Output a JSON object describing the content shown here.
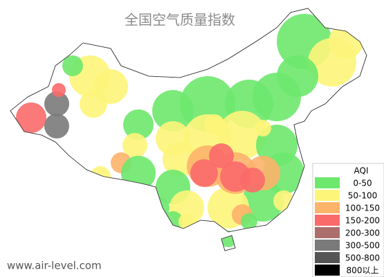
{
  "title": "全国空气质量指数",
  "watermark": "www.air-level.com",
  "legend": {
    "title": "AQI",
    "items": [
      {
        "label": "0-50",
        "color": "#6de86d"
      },
      {
        "label": "50-100",
        "color": "#fdf57a"
      },
      {
        "label": "100-150",
        "color": "#fdb36a"
      },
      {
        "label": "150-200",
        "color": "#fb6a6a"
      },
      {
        "label": "200-300",
        "color": "#ad6e6e"
      },
      {
        "label": "300-500",
        "color": "#7a7a7a"
      },
      {
        "label": "500-800",
        "color": "#555555"
      },
      {
        "label": "800以上",
        "color": "#000000"
      }
    ]
  }
}
